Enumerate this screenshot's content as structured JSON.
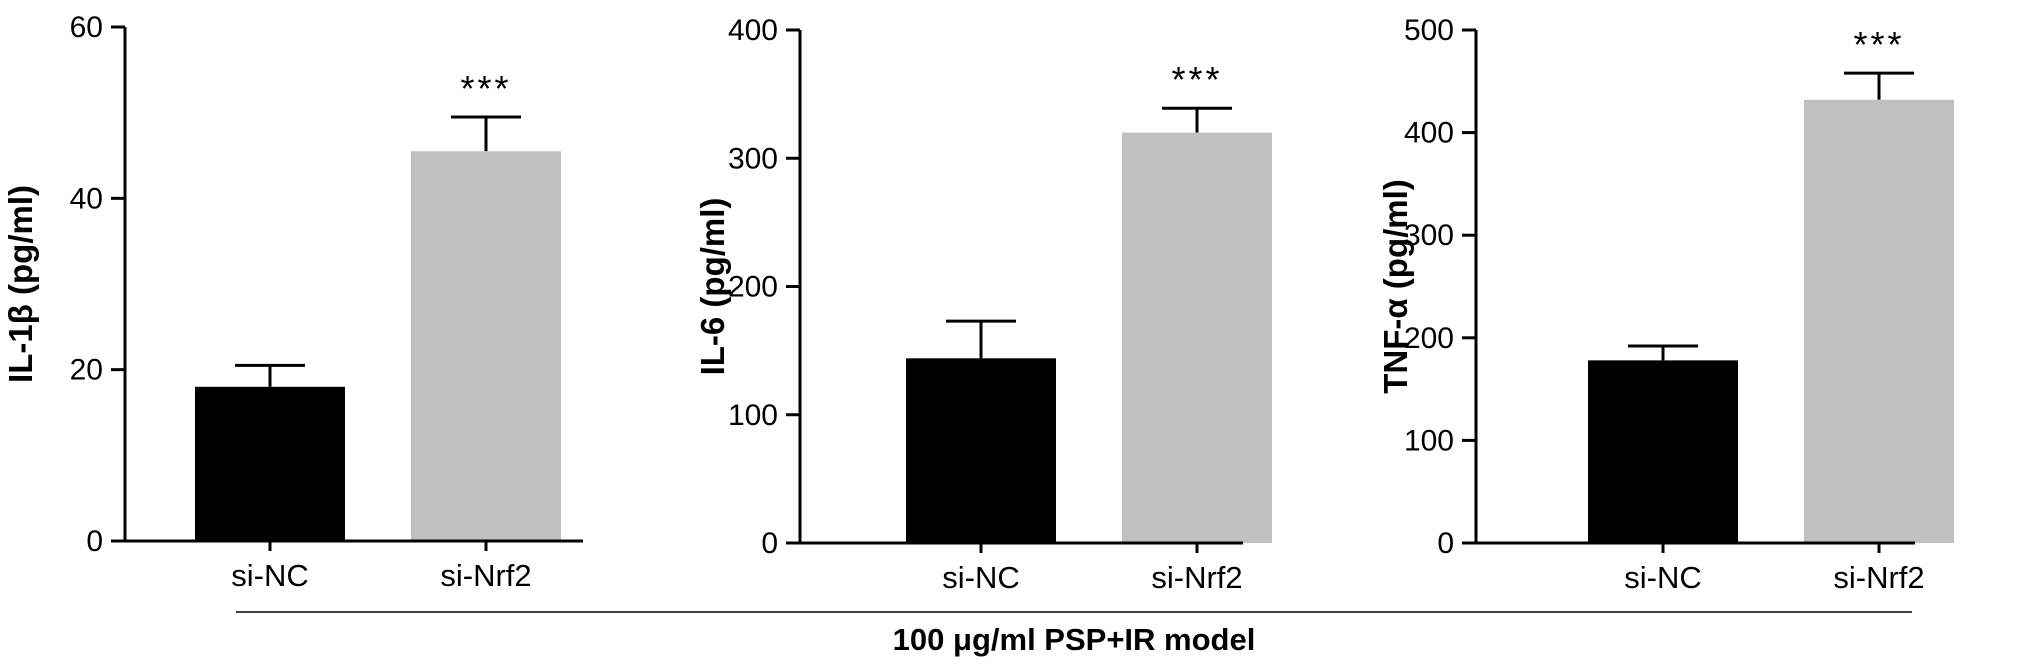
{
  "figure": {
    "group_label": "100 μg/ml PSP+IR model"
  },
  "colors": {
    "si_nc": "#000000",
    "si_nrf2": "#c0c0c0",
    "axis": "#000000"
  },
  "chart_data": [
    {
      "type": "bar",
      "title": "",
      "ylabel": "IL-1β (pg/ml)",
      "xlabel": "",
      "ylim": [
        0,
        60
      ],
      "yticks": [
        0,
        20,
        40,
        60
      ],
      "categories": [
        "si-NC",
        "si-Nrf2"
      ],
      "values": [
        18,
        45.5
      ],
      "errors": [
        2.5,
        4
      ],
      "annotations": [
        "",
        "***"
      ]
    },
    {
      "type": "bar",
      "title": "",
      "ylabel": "IL-6 (pg/ml)",
      "xlabel": "",
      "ylim": [
        0,
        400
      ],
      "yticks": [
        0,
        100,
        200,
        300,
        400
      ],
      "categories": [
        "si-NC",
        "si-Nrf2"
      ],
      "values": [
        144,
        320
      ],
      "errors": [
        29,
        19
      ],
      "annotations": [
        "",
        "***"
      ]
    },
    {
      "type": "bar",
      "title": "",
      "ylabel": "TNF-α (pg/ml)",
      "xlabel": "",
      "ylim": [
        0,
        500
      ],
      "yticks": [
        0,
        100,
        200,
        300,
        400,
        500
      ],
      "categories": [
        "si-NC",
        "si-Nrf2"
      ],
      "values": [
        178,
        432
      ],
      "errors": [
        14,
        26
      ],
      "annotations": [
        "",
        "***"
      ]
    }
  ]
}
